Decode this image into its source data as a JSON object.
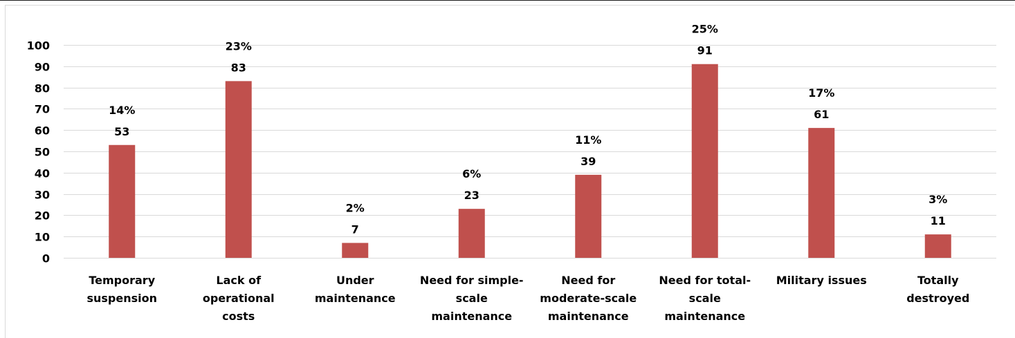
{
  "chart_data": {
    "type": "bar",
    "categories": [
      [
        "Temporary",
        "suspension"
      ],
      [
        "Lack of",
        "operational",
        "costs"
      ],
      [
        "Under",
        "maintenance"
      ],
      [
        "Need for simple-",
        "scale",
        "maintenance"
      ],
      [
        "Need for",
        "moderate-scale",
        "maintenance"
      ],
      [
        "Need for total-",
        "scale",
        "maintenance"
      ],
      [
        "Military issues"
      ],
      [
        "Totally",
        "destroyed"
      ]
    ],
    "values": [
      53,
      83,
      7,
      23,
      39,
      91,
      61,
      11
    ],
    "percent_labels": [
      "14%",
      "23%",
      "2%",
      "6%",
      "11%",
      "25%",
      "17%",
      "3%"
    ],
    "ylim": [
      0,
      100
    ],
    "yticks": [
      "0",
      "10",
      "20",
      "30",
      "40",
      "50",
      "60",
      "70",
      "80",
      "90",
      "100"
    ],
    "grid": true,
    "bar_color": "#c0504d",
    "grid_color": "#d9d9d9"
  }
}
